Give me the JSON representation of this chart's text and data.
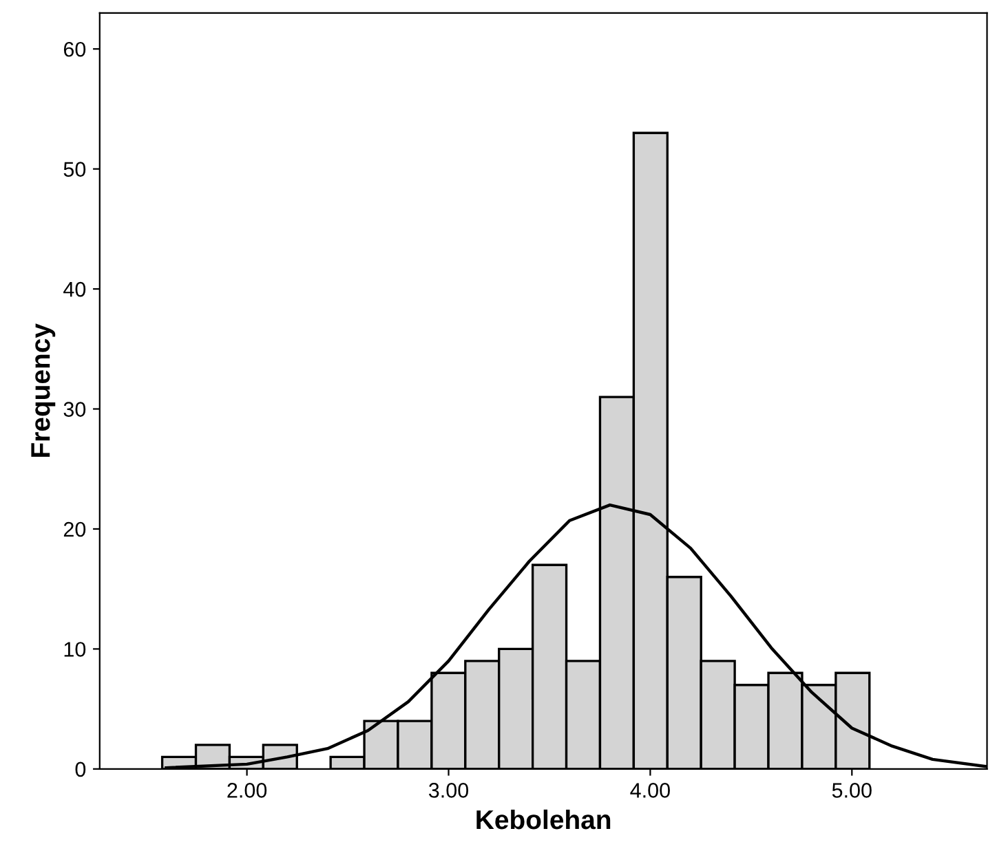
{
  "chart_data": {
    "type": "histogram",
    "xlabel": "Kebolehan",
    "ylabel": "Frequency",
    "bins": [
      1.58,
      1.747,
      1.914,
      2.081,
      2.248,
      2.415,
      2.582,
      2.749,
      2.916,
      3.083,
      3.25,
      3.417,
      3.584,
      3.751,
      3.918,
      4.085,
      4.252,
      4.419,
      4.586,
      4.753,
      4.92,
      5.087
    ],
    "values": [
      1,
      2,
      1,
      2,
      0,
      1,
      4,
      4,
      8,
      9,
      10,
      17,
      9,
      31,
      53,
      16,
      9,
      7,
      8,
      7,
      8
    ],
    "color": "#d4d4d4",
    "series": [
      {
        "type": "line",
        "color": "#000000",
        "x": [
          1.6,
          2.0,
          2.2,
          2.4,
          2.6,
          2.8,
          3.0,
          3.2,
          3.4,
          3.6,
          3.8,
          4.0,
          4.2,
          4.4,
          4.6,
          4.8,
          5.0,
          5.2,
          5.4,
          5.67
        ],
        "values": [
          0.1,
          0.4,
          1.0,
          1.7,
          3.2,
          5.6,
          9.0,
          13.3,
          17.3,
          20.7,
          22.0,
          21.2,
          18.4,
          14.4,
          10.1,
          6.4,
          3.4,
          1.9,
          0.8,
          0.2
        ]
      }
    ],
    "xlim": [
      1.27,
      5.67
    ],
    "ylim": [
      0,
      63
    ],
    "xticks": [
      {
        "value": 2,
        "label": "2.00"
      },
      {
        "value": 3,
        "label": "3.00"
      },
      {
        "value": 4,
        "label": "4.00"
      },
      {
        "value": 5,
        "label": "5.00"
      }
    ],
    "yticks": [
      0,
      10,
      20,
      30,
      40,
      50,
      60
    ],
    "grid": false
  }
}
